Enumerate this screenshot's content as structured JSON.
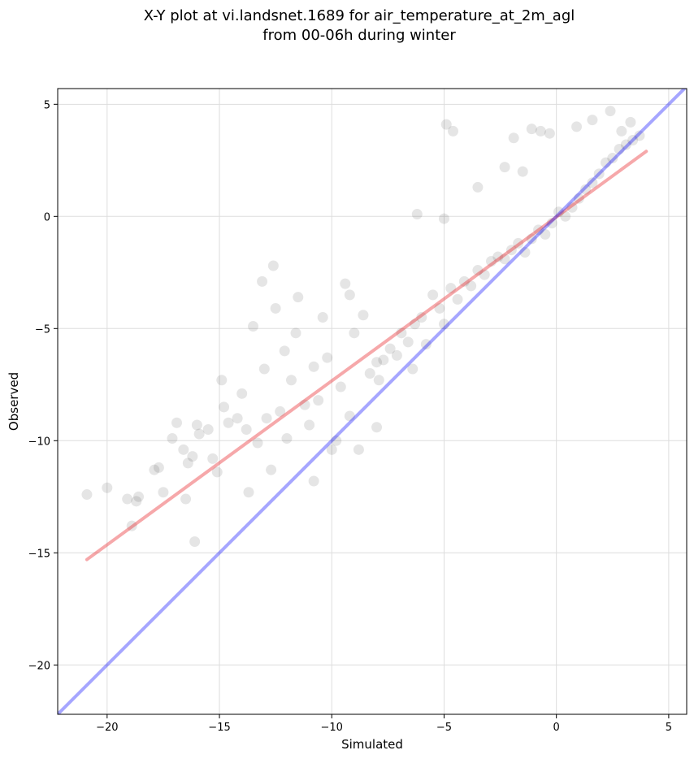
{
  "chart_data": {
    "type": "scatter",
    "title_line1": "X-Y plot at vi.landsnet.1689 for air_temperature_at_2m_agl",
    "title_line2": "from 00-06h during winter",
    "xlabel": "Simulated",
    "ylabel": "Observed",
    "xlim": [
      -22.2,
      5.8
    ],
    "ylim": [
      -22.2,
      5.7
    ],
    "xticks": [
      -20,
      -15,
      -10,
      -5,
      0,
      5
    ],
    "yticks": [
      5,
      0,
      -5,
      -10,
      -15,
      -20
    ],
    "xtick_labels": [
      "−20",
      "−15",
      "−10",
      "−5",
      "0",
      "5"
    ],
    "ytick_labels": [
      "5",
      "0",
      "−5",
      "−10",
      "−15",
      "−20"
    ],
    "grid": true,
    "point_color": "#000000",
    "identity_line": {
      "x": [
        -22.2,
        5.8
      ],
      "y": [
        -22.2,
        5.8
      ],
      "color": "#0000ff"
    },
    "fit_line": {
      "x": [
        -20.9,
        4.0
      ],
      "y": [
        -15.3,
        2.9
      ],
      "color": "#e8262a"
    },
    "points_x": [
      -20.9,
      -20.0,
      -19.1,
      -18.9,
      -18.6,
      -18.7,
      -17.9,
      -17.7,
      -17.5,
      -17.1,
      -16.9,
      -16.6,
      -16.4,
      -16.5,
      -16.2,
      -16.1,
      -16.0,
      -15.9,
      -15.5,
      -15.3,
      -15.1,
      -14.9,
      -14.8,
      -14.6,
      -14.2,
      -14.0,
      -13.8,
      -13.7,
      -13.5,
      -13.3,
      -13.0,
      -12.9,
      -12.7,
      -12.5,
      -12.3,
      -12.1,
      -12.0,
      -11.8,
      -11.6,
      -11.5,
      -11.2,
      -11.0,
      -10.8,
      -10.6,
      -10.4,
      -10.2,
      -10.0,
      -9.8,
      -9.6,
      -9.4,
      -9.2,
      -9.0,
      -8.8,
      -8.6,
      -8.3,
      -8.0,
      -7.7,
      -7.4,
      -7.1,
      -6.9,
      -6.6,
      -6.3,
      -6.0,
      -5.8,
      -5.5,
      -5.2,
      -5.0,
      -4.7,
      -4.4,
      -4.1,
      -3.8,
      -3.5,
      -3.2,
      -2.9,
      -2.6,
      -2.3,
      -2.0,
      -1.7,
      -1.4,
      -1.1,
      -0.8,
      -0.5,
      -0.2,
      0.1,
      0.4,
      0.7,
      1.0,
      1.3,
      1.6,
      1.9,
      2.2,
      2.5,
      2.8,
      3.1,
      3.4,
      3.7,
      -4.9,
      -4.6,
      -1.5,
      -6.2,
      -13.1,
      -12.6,
      -9.2,
      -5.0,
      -3.5,
      -2.3,
      -1.9,
      -1.1,
      -0.7,
      -0.3,
      0.9,
      1.6,
      2.4,
      2.9,
      3.3,
      -7.9,
      -6.4,
      -10.8,
      -8.0
    ],
    "points_y": [
      -12.4,
      -12.1,
      -12.6,
      -13.8,
      -12.5,
      -12.7,
      -11.3,
      -11.2,
      -12.3,
      -9.9,
      -9.2,
      -10.4,
      -11.0,
      -12.6,
      -10.7,
      -14.5,
      -9.3,
      -9.7,
      -9.5,
      -10.8,
      -11.4,
      -7.3,
      -8.5,
      -9.2,
      -9.0,
      -7.9,
      -9.5,
      -12.3,
      -4.9,
      -10.1,
      -6.8,
      -9.0,
      -11.3,
      -4.1,
      -8.7,
      -6.0,
      -9.9,
      -7.3,
      -5.2,
      -3.6,
      -8.4,
      -9.3,
      -6.7,
      -8.2,
      -4.5,
      -6.3,
      -10.4,
      -10.0,
      -7.6,
      -3.0,
      -8.9,
      -5.2,
      -10.4,
      -4.4,
      -7.0,
      -6.5,
      -6.4,
      -5.9,
      -6.2,
      -5.2,
      -5.6,
      -4.8,
      -4.5,
      -5.7,
      -3.5,
      -4.1,
      -4.8,
      -3.2,
      -3.7,
      -2.9,
      -3.1,
      -2.4,
      -2.6,
      -2.0,
      -1.8,
      -1.9,
      -1.5,
      -1.2,
      -1.6,
      -1.0,
      -0.6,
      -0.8,
      -0.3,
      0.2,
      0.0,
      0.4,
      0.8,
      1.2,
      1.5,
      1.9,
      2.4,
      2.6,
      3.0,
      3.2,
      3.4,
      3.6,
      4.1,
      3.8,
      2.0,
      0.1,
      -2.9,
      -2.2,
      -3.5,
      -0.1,
      1.3,
      2.2,
      3.5,
      3.9,
      3.8,
      3.7,
      4.0,
      4.3,
      4.7,
      3.8,
      4.2,
      -7.3,
      -6.8,
      -11.8,
      -9.4
    ]
  }
}
